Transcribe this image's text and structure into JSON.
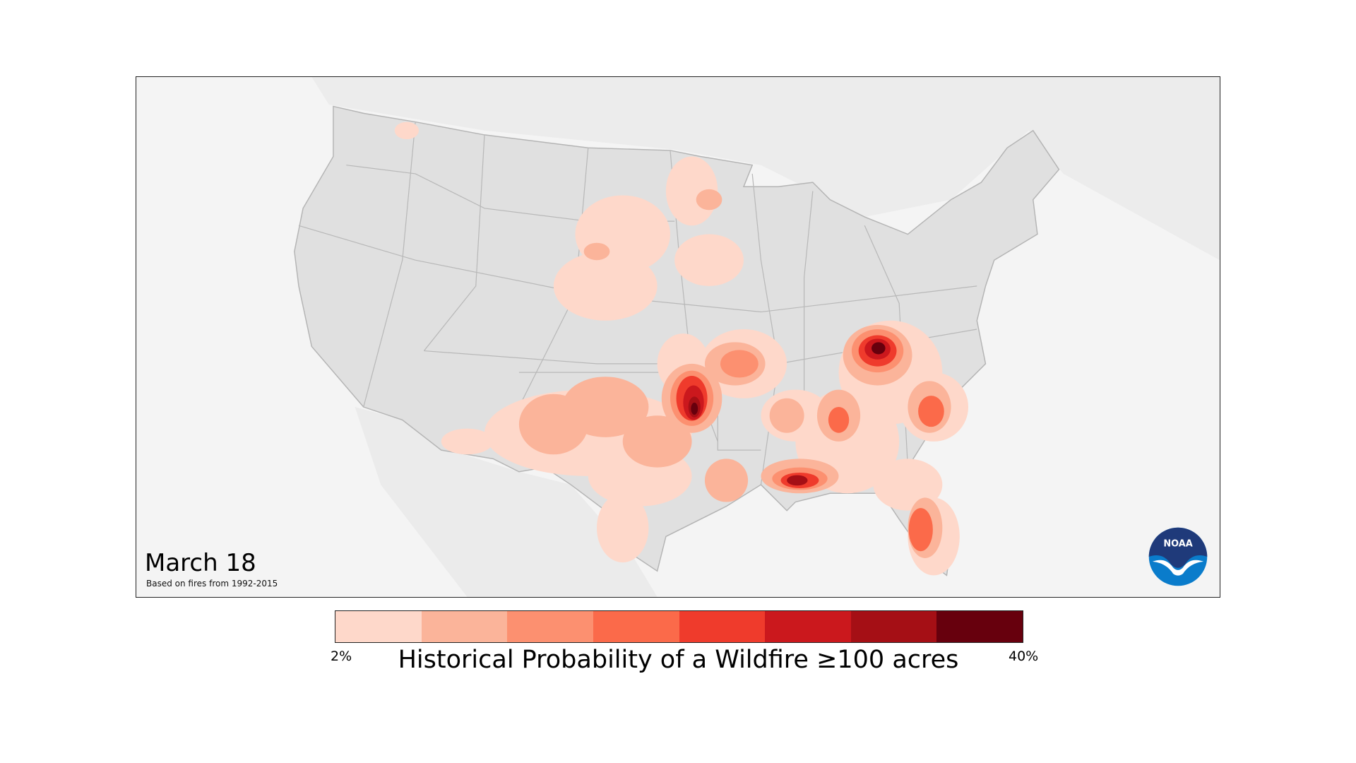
{
  "map": {
    "date": "March 18",
    "subtitle": "Based on fires from 1992-2015",
    "logo_text": "NOAA"
  },
  "legend": {
    "title": "Historical Probability of a Wildfire ≥100 acres",
    "min_label": "2%",
    "max_label": "40%",
    "colors": [
      "#fed8ca",
      "#fbb49a",
      "#fc9070",
      "#fb6a4a",
      "#ef3b2c",
      "#cb181d",
      "#a50f15",
      "#67000d"
    ]
  },
  "colors": {
    "land": "#e0e0e0",
    "background": "#f4f4f4",
    "borders": "#b4b4b4"
  }
}
